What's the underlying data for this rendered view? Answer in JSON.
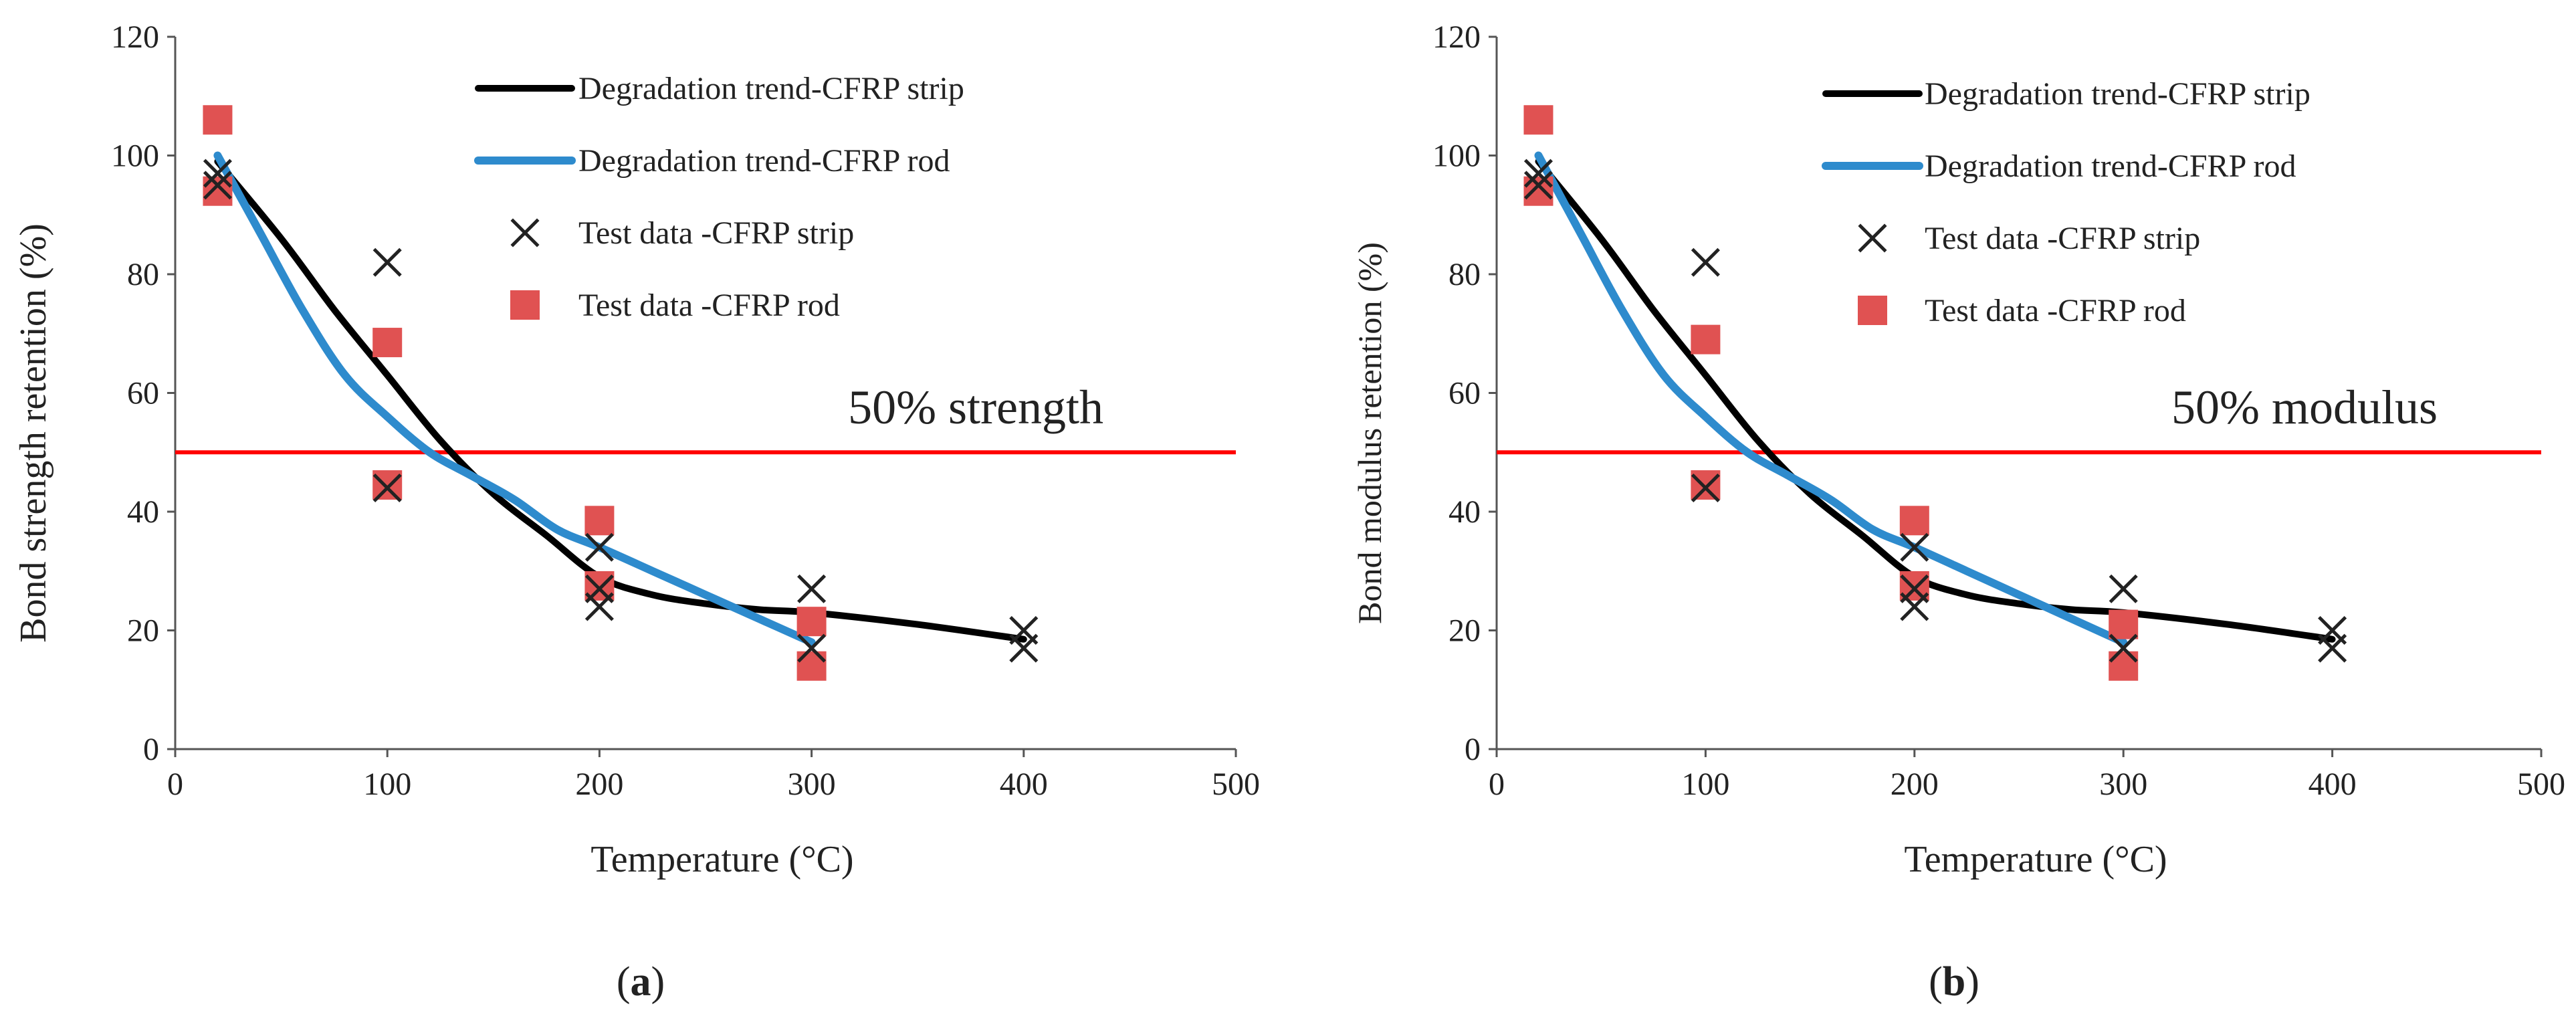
{
  "figure": {
    "background": "#ffffff"
  },
  "chart_data": [
    {
      "id": "a",
      "type": "scatter",
      "panel_label": "a",
      "title": "",
      "xlabel": "Temperature (°C)",
      "ylabel": "Bond strength retention (%)",
      "xlim": [
        0,
        500
      ],
      "ylim": [
        0,
        120
      ],
      "xticks": [
        0,
        100,
        200,
        300,
        400,
        500
      ],
      "yticks": [
        0,
        20,
        40,
        60,
        80,
        100,
        120
      ],
      "xtick_labels": [
        "0",
        "100",
        "200",
        "300",
        "400",
        "500"
      ],
      "ytick_labels": [
        "0",
        "20",
        "40",
        "60",
        "80",
        "100",
        "120"
      ],
      "grid": false,
      "legend_position": "top-right",
      "series": [
        {
          "name": "Degradation trend-CFRP strip",
          "kind": "line",
          "color": "#000000",
          "x": [
            20,
            50,
            75,
            100,
            125,
            150,
            175,
            200,
            225,
            250,
            275,
            300,
            350,
            400
          ],
          "y": [
            99,
            86,
            74,
            63,
            52,
            43,
            36,
            29,
            26,
            24.5,
            23.5,
            23,
            21,
            18.5
          ]
        },
        {
          "name": "Degradation trend-CFRP rod",
          "kind": "line",
          "color": "#2e8bcd",
          "x": [
            20,
            40,
            60,
            80,
            100,
            120,
            140,
            160,
            180,
            200,
            225,
            250,
            275,
            300
          ],
          "y": [
            100,
            87,
            74,
            63,
            56,
            50,
            46,
            42,
            37,
            34,
            30,
            26,
            22,
            18
          ]
        },
        {
          "name": "Test data -CFRP strip",
          "kind": "scatter",
          "marker": "x",
          "color": "#222222",
          "x": [
            20,
            20,
            100,
            100,
            200,
            200,
            200,
            300,
            300,
            400,
            400
          ],
          "y": [
            97,
            95,
            82,
            44,
            34,
            24,
            27,
            27,
            17,
            20,
            17
          ]
        },
        {
          "name": "Test data -CFRP rod",
          "kind": "scatter",
          "marker": "square",
          "color": "#e05252",
          "x": [
            20,
            20,
            100,
            100,
            200,
            200,
            300,
            300
          ],
          "y": [
            106,
            94,
            68.5,
            44.5,
            38.5,
            27.5,
            21.5,
            14
          ]
        }
      ],
      "reference_line": {
        "y": 50,
        "color": "#ff0000",
        "label": "50% strength"
      }
    },
    {
      "id": "b",
      "type": "scatter",
      "panel_label": "b",
      "title": "",
      "xlabel": "Temperature (°C)",
      "ylabel": "Bond modulus retention (%)",
      "xlim": [
        0,
        500
      ],
      "ylim": [
        0,
        120
      ],
      "xticks": [
        0,
        100,
        200,
        300,
        400,
        500
      ],
      "yticks": [
        0,
        20,
        40,
        60,
        80,
        100,
        120
      ],
      "xtick_labels": [
        "0",
        "100",
        "200",
        "300",
        "400",
        "500"
      ],
      "ytick_labels": [
        "0",
        "20",
        "40",
        "60",
        "80",
        "100",
        "120"
      ],
      "grid": false,
      "legend_position": "top-right",
      "series": [
        {
          "name": "Degradation trend-CFRP strip",
          "kind": "line",
          "color": "#000000",
          "x": [
            20,
            50,
            75,
            100,
            125,
            150,
            175,
            200,
            225,
            250,
            275,
            300,
            350,
            400
          ],
          "y": [
            99,
            86,
            74,
            63,
            52,
            43,
            36,
            29,
            26,
            24.5,
            23.5,
            23,
            21,
            18.5
          ]
        },
        {
          "name": "Degradation trend-CFRP rod",
          "kind": "line",
          "color": "#2e8bcd",
          "x": [
            20,
            40,
            60,
            80,
            100,
            120,
            140,
            160,
            180,
            200,
            225,
            250,
            275,
            300
          ],
          "y": [
            100,
            87,
            74,
            63,
            56,
            50,
            46,
            42,
            37,
            34,
            30,
            26,
            22,
            18
          ]
        },
        {
          "name": "Test data -CFRP strip",
          "kind": "scatter",
          "marker": "x",
          "color": "#222222",
          "x": [
            20,
            20,
            100,
            100,
            200,
            200,
            200,
            300,
            300,
            400,
            400
          ],
          "y": [
            97,
            95,
            82,
            44,
            34,
            24,
            27,
            27,
            17,
            20,
            17
          ]
        },
        {
          "name": "Test data -CFRP rod",
          "kind": "scatter",
          "marker": "square",
          "color": "#e05252",
          "x": [
            20,
            20,
            100,
            100,
            200,
            200,
            300,
            300
          ],
          "y": [
            106,
            94,
            69,
            44.5,
            38.5,
            27.5,
            21,
            14
          ]
        }
      ],
      "reference_line": {
        "y": 50,
        "color": "#ff0000",
        "label": "50% modulus"
      }
    }
  ]
}
